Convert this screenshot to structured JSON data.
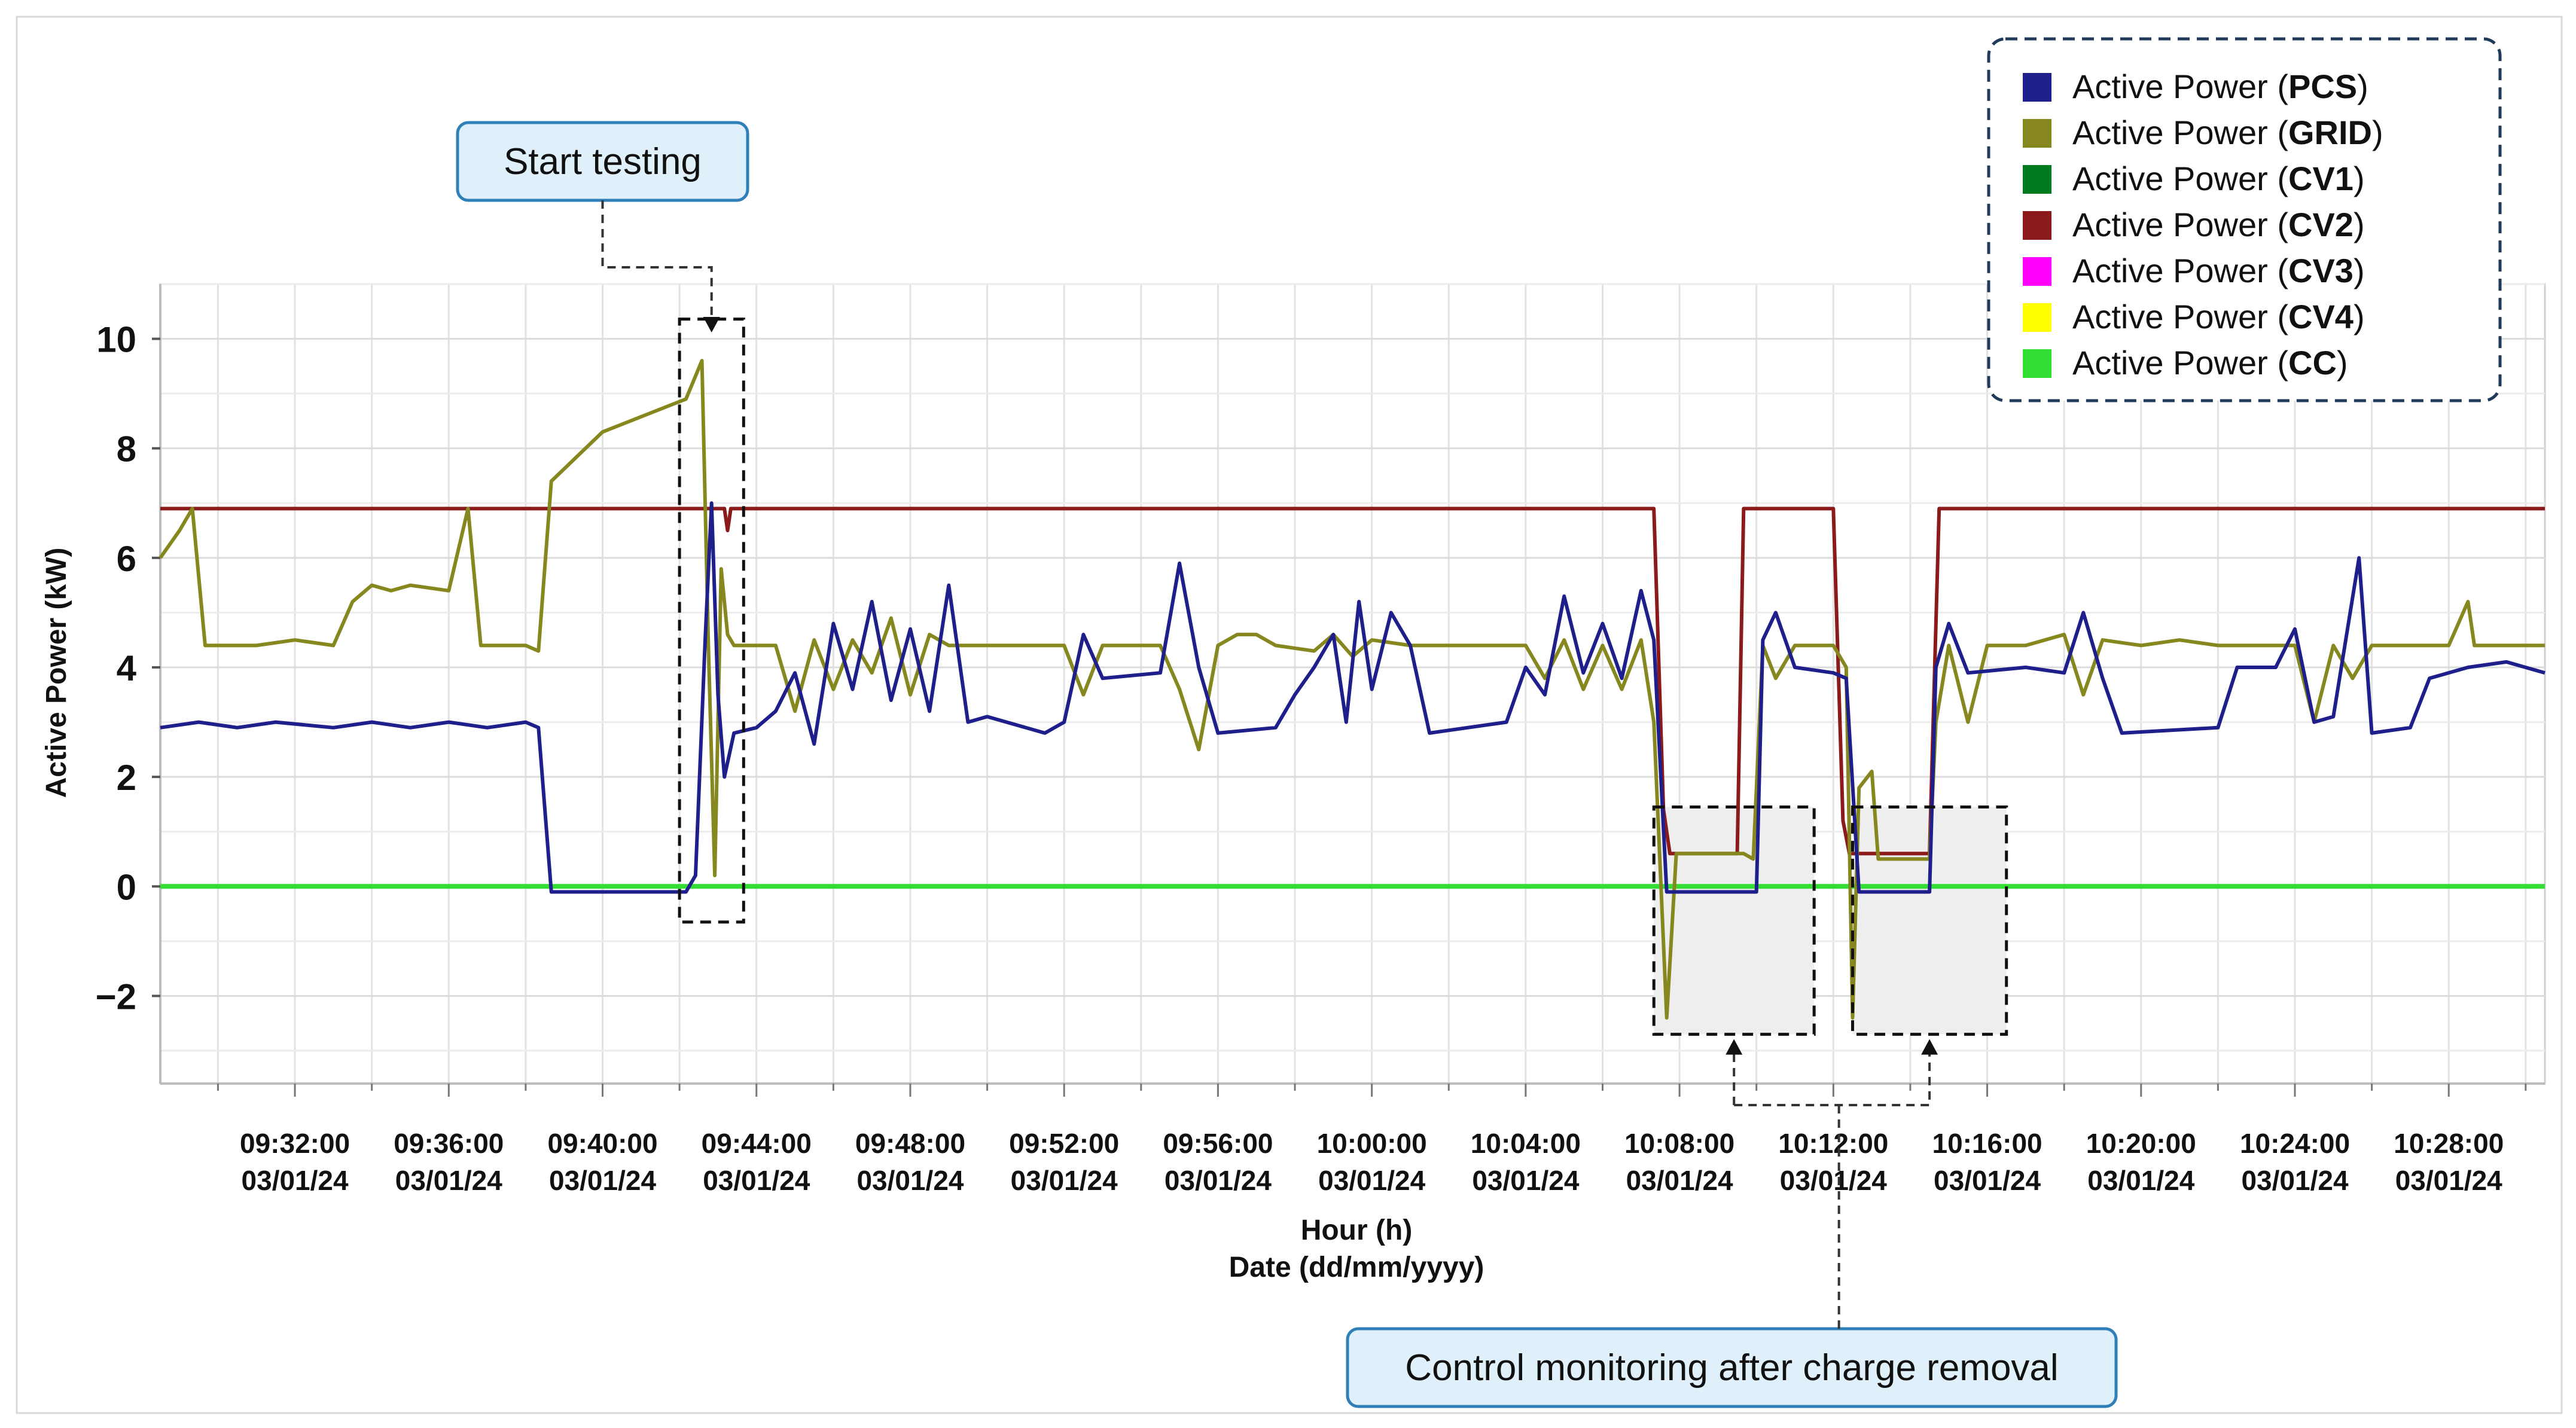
{
  "chart_data": {
    "type": "line",
    "ylabel": "Active Power (kW)",
    "xlabel_line1": "Hour (h)",
    "xlabel_line2": "Date (dd/mm/yyyy)",
    "ylim": [
      -3.6,
      11.0
    ],
    "yticks": [
      -2,
      0,
      2,
      4,
      6,
      8,
      10
    ],
    "ytick_labels": [
      "−2",
      "0",
      "2",
      "4",
      "6",
      "8",
      "10"
    ],
    "xlim": [
      "09:28:30",
      "10:30:30"
    ],
    "xticks": [
      "09:32:00",
      "09:36:00",
      "09:40:00",
      "09:44:00",
      "09:48:00",
      "09:52:00",
      "09:56:00",
      "10:00:00",
      "10:04:00",
      "10:08:00",
      "10:12:00",
      "10:16:00",
      "10:20:00",
      "10:24:00",
      "10:28:00"
    ],
    "xtick_date": "03/01/24",
    "grid": true,
    "legend_position": "top-right",
    "legend_prefix": "Active Power (",
    "legend_suffix": ")",
    "series": [
      {
        "name": "PCS",
        "color": "#1f1f8c",
        "points": [
          [
            "09:28:30",
            2.9
          ],
          [
            "09:29:30",
            3.0
          ],
          [
            "09:30:30",
            2.9
          ],
          [
            "09:31:30",
            3.0
          ],
          [
            "09:33:00",
            2.9
          ],
          [
            "09:34:00",
            3.0
          ],
          [
            "09:35:00",
            2.9
          ],
          [
            "09:36:00",
            3.0
          ],
          [
            "09:37:00",
            2.9
          ],
          [
            "09:38:00",
            3.0
          ],
          [
            "09:38:20",
            2.9
          ],
          [
            "09:38:40",
            -0.1
          ],
          [
            "09:42:10",
            -0.1
          ],
          [
            "09:42:25",
            0.2
          ],
          [
            "09:42:40",
            4.5
          ],
          [
            "09:42:50",
            7.0
          ],
          [
            "09:43:00",
            3.5
          ],
          [
            "09:43:10",
            2.0
          ],
          [
            "09:43:25",
            2.8
          ],
          [
            "09:44:00",
            2.9
          ],
          [
            "09:44:30",
            3.2
          ],
          [
            "09:45:00",
            3.9
          ],
          [
            "09:45:30",
            2.6
          ],
          [
            "09:46:00",
            4.8
          ],
          [
            "09:46:30",
            3.6
          ],
          [
            "09:47:00",
            5.2
          ],
          [
            "09:47:30",
            3.4
          ],
          [
            "09:48:00",
            4.7
          ],
          [
            "09:48:30",
            3.2
          ],
          [
            "09:49:00",
            5.5
          ],
          [
            "09:49:30",
            3.0
          ],
          [
            "09:50:00",
            3.1
          ],
          [
            "09:51:30",
            2.8
          ],
          [
            "09:52:00",
            3.0
          ],
          [
            "09:52:30",
            4.6
          ],
          [
            "09:53:00",
            3.8
          ],
          [
            "09:54:30",
            3.9
          ],
          [
            "09:55:00",
            5.9
          ],
          [
            "09:55:30",
            4.0
          ],
          [
            "09:56:00",
            2.8
          ],
          [
            "09:57:30",
            2.9
          ],
          [
            "09:58:00",
            3.5
          ],
          [
            "09:58:30",
            4.0
          ],
          [
            "09:59:00",
            4.6
          ],
          [
            "09:59:20",
            3.0
          ],
          [
            "09:59:40",
            5.2
          ],
          [
            "10:00:00",
            3.6
          ],
          [
            "10:00:30",
            5.0
          ],
          [
            "10:01:00",
            4.4
          ],
          [
            "10:01:30",
            2.8
          ],
          [
            "10:03:30",
            3.0
          ],
          [
            "10:04:00",
            4.0
          ],
          [
            "10:04:30",
            3.5
          ],
          [
            "10:05:00",
            5.3
          ],
          [
            "10:05:30",
            3.9
          ],
          [
            "10:06:00",
            4.8
          ],
          [
            "10:06:30",
            3.8
          ],
          [
            "10:07:00",
            5.4
          ],
          [
            "10:07:20",
            4.5
          ],
          [
            "10:07:40",
            -0.1
          ],
          [
            "10:10:00",
            -0.1
          ],
          [
            "10:10:10",
            4.5
          ],
          [
            "10:10:30",
            5.0
          ],
          [
            "10:11:00",
            4.0
          ],
          [
            "10:12:00",
            3.9
          ],
          [
            "10:12:20",
            3.8
          ],
          [
            "10:12:40",
            -0.1
          ],
          [
            "10:14:30",
            -0.1
          ],
          [
            "10:14:40",
            4.0
          ],
          [
            "10:15:00",
            4.8
          ],
          [
            "10:15:30",
            3.9
          ],
          [
            "10:17:00",
            4.0
          ],
          [
            "10:18:00",
            3.9
          ],
          [
            "10:18:30",
            5.0
          ],
          [
            "10:19:00",
            3.8
          ],
          [
            "10:19:30",
            2.8
          ],
          [
            "10:22:00",
            2.9
          ],
          [
            "10:22:30",
            4.0
          ],
          [
            "10:23:30",
            4.0
          ],
          [
            "10:24:00",
            4.7
          ],
          [
            "10:24:30",
            3.0
          ],
          [
            "10:25:00",
            3.1
          ],
          [
            "10:25:40",
            6.0
          ],
          [
            "10:26:00",
            2.8
          ],
          [
            "10:27:00",
            2.9
          ],
          [
            "10:27:30",
            3.8
          ],
          [
            "10:28:30",
            4.0
          ],
          [
            "10:29:30",
            4.1
          ],
          [
            "10:30:30",
            3.9
          ]
        ]
      },
      {
        "name": "GRID",
        "color": "#87871f",
        "points": [
          [
            "09:28:30",
            6.0
          ],
          [
            "09:29:00",
            6.5
          ],
          [
            "09:29:20",
            6.9
          ],
          [
            "09:29:40",
            4.4
          ],
          [
            "09:31:00",
            4.4
          ],
          [
            "09:32:00",
            4.5
          ],
          [
            "09:33:00",
            4.4
          ],
          [
            "09:33:30",
            5.2
          ],
          [
            "09:34:00",
            5.5
          ],
          [
            "09:34:30",
            5.4
          ],
          [
            "09:35:00",
            5.5
          ],
          [
            "09:36:00",
            5.4
          ],
          [
            "09:36:30",
            6.9
          ],
          [
            "09:36:50",
            4.4
          ],
          [
            "09:38:00",
            4.4
          ],
          [
            "09:38:20",
            4.3
          ],
          [
            "09:38:40",
            7.4
          ],
          [
            "09:40:00",
            8.3
          ],
          [
            "09:42:10",
            8.9
          ],
          [
            "09:42:35",
            9.6
          ],
          [
            "09:42:45",
            4.4
          ],
          [
            "09:42:55",
            0.2
          ],
          [
            "09:43:05",
            5.8
          ],
          [
            "09:43:15",
            4.6
          ],
          [
            "09:43:25",
            4.4
          ],
          [
            "09:44:00",
            4.4
          ],
          [
            "09:44:30",
            4.4
          ],
          [
            "09:45:00",
            3.2
          ],
          [
            "09:45:30",
            4.5
          ],
          [
            "09:46:00",
            3.6
          ],
          [
            "09:46:30",
            4.5
          ],
          [
            "09:47:00",
            3.9
          ],
          [
            "09:47:30",
            4.9
          ],
          [
            "09:48:00",
            3.5
          ],
          [
            "09:48:30",
            4.6
          ],
          [
            "09:49:00",
            4.4
          ],
          [
            "09:52:00",
            4.4
          ],
          [
            "09:52:30",
            3.5
          ],
          [
            "09:53:00",
            4.4
          ],
          [
            "09:54:00",
            4.4
          ],
          [
            "09:54:30",
            4.4
          ],
          [
            "09:55:00",
            3.6
          ],
          [
            "09:55:30",
            2.5
          ],
          [
            "09:56:00",
            4.4
          ],
          [
            "09:56:30",
            4.6
          ],
          [
            "09:57:00",
            4.6
          ],
          [
            "09:57:30",
            4.4
          ],
          [
            "09:58:30",
            4.3
          ],
          [
            "09:59:00",
            4.6
          ],
          [
            "09:59:30",
            4.2
          ],
          [
            "10:00:00",
            4.5
          ],
          [
            "10:01:00",
            4.4
          ],
          [
            "10:03:00",
            4.4
          ],
          [
            "10:04:00",
            4.4
          ],
          [
            "10:04:30",
            3.8
          ],
          [
            "10:05:00",
            4.5
          ],
          [
            "10:05:30",
            3.6
          ],
          [
            "10:06:00",
            4.4
          ],
          [
            "10:06:30",
            3.6
          ],
          [
            "10:07:00",
            4.5
          ],
          [
            "10:07:20",
            3.0
          ],
          [
            "10:07:40",
            -2.4
          ],
          [
            "10:07:55",
            0.6
          ],
          [
            "10:09:40",
            0.6
          ],
          [
            "10:09:55",
            0.5
          ],
          [
            "10:10:10",
            4.4
          ],
          [
            "10:10:30",
            3.8
          ],
          [
            "10:11:00",
            4.4
          ],
          [
            "10:12:00",
            4.4
          ],
          [
            "10:12:20",
            4.0
          ],
          [
            "10:12:30",
            -2.4
          ],
          [
            "10:12:40",
            1.8
          ],
          [
            "10:13:00",
            2.1
          ],
          [
            "10:13:10",
            0.5
          ],
          [
            "10:14:30",
            0.5
          ],
          [
            "10:14:40",
            3.0
          ],
          [
            "10:15:00",
            4.4
          ],
          [
            "10:15:30",
            3.0
          ],
          [
            "10:16:00",
            4.4
          ],
          [
            "10:17:00",
            4.4
          ],
          [
            "10:18:00",
            4.6
          ],
          [
            "10:18:30",
            3.5
          ],
          [
            "10:19:00",
            4.5
          ],
          [
            "10:20:00",
            4.4
          ],
          [
            "10:21:00",
            4.5
          ],
          [
            "10:22:00",
            4.4
          ],
          [
            "10:24:00",
            4.4
          ],
          [
            "10:24:30",
            3.0
          ],
          [
            "10:25:00",
            4.4
          ],
          [
            "10:25:30",
            3.8
          ],
          [
            "10:26:00",
            4.4
          ],
          [
            "10:28:00",
            4.4
          ],
          [
            "10:28:30",
            5.2
          ],
          [
            "10:28:40",
            4.4
          ],
          [
            "10:30:30",
            4.4
          ]
        ]
      },
      {
        "name": "CV1",
        "color": "#007a1f",
        "points": []
      },
      {
        "name": "CV2",
        "color": "#8b1a1a",
        "points": [
          [
            "09:28:30",
            6.9
          ],
          [
            "09:43:10",
            6.9
          ],
          [
            "09:43:15",
            6.5
          ],
          [
            "09:43:20",
            6.9
          ],
          [
            "10:07:20",
            6.9
          ],
          [
            "10:07:35",
            1.4
          ],
          [
            "10:07:45",
            0.6
          ],
          [
            "10:09:30",
            0.6
          ],
          [
            "10:09:40",
            6.9
          ],
          [
            "10:12:00",
            6.9
          ],
          [
            "10:12:15",
            1.2
          ],
          [
            "10:12:25",
            0.6
          ],
          [
            "10:14:30",
            0.6
          ],
          [
            "10:14:45",
            6.9
          ],
          [
            "10:30:30",
            6.9
          ]
        ]
      },
      {
        "name": "CV3",
        "color": "#ff00ff",
        "points": []
      },
      {
        "name": "CV4",
        "color": "#ffff00",
        "points": []
      },
      {
        "name": "CC",
        "color": "#33dd33",
        "points": [
          [
            "09:28:30",
            0.0
          ],
          [
            "10:30:30",
            0.0
          ]
        ]
      }
    ],
    "annotations": [
      {
        "text": "Start testing",
        "from": "09:42:00",
        "to": "09:43:40",
        "ymin": -0.65,
        "ymax": 10.0
      },
      {
        "text": "Control monitoring after charge removal",
        "regions": [
          {
            "from": "10:07:20",
            "to": "10:11:30",
            "ymin": -2.7,
            "ymax": 1.45
          },
          {
            "from": "10:12:30",
            "to": "10:16:30",
            "ymin": -2.7,
            "ymax": 1.45
          }
        ]
      }
    ]
  }
}
